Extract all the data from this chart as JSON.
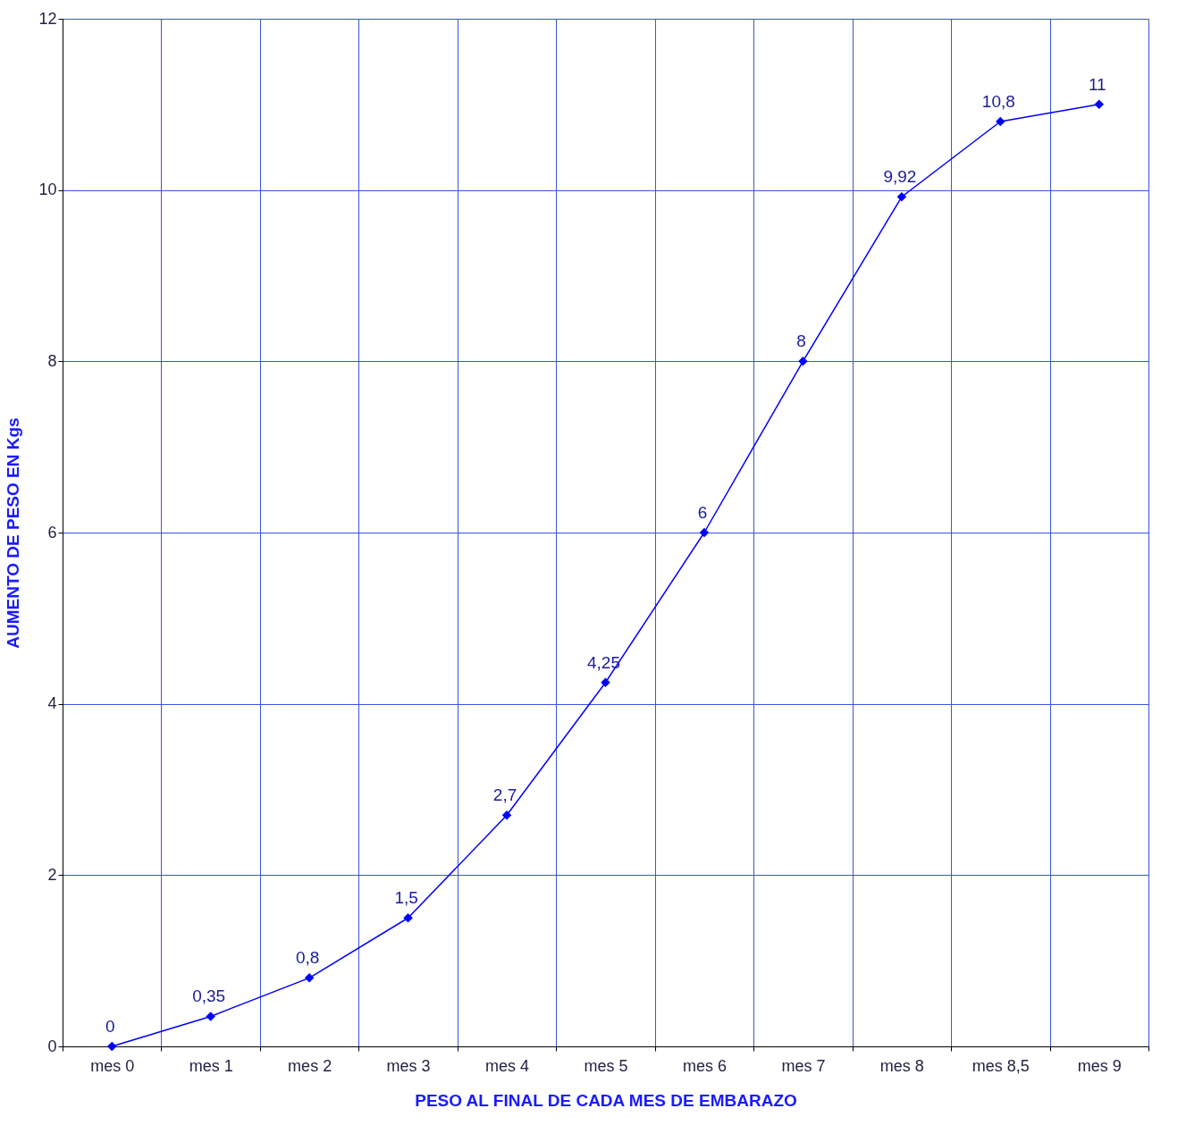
{
  "chart_data": {
    "type": "line",
    "xlabel": "PESO AL FINAL DE CADA MES DE EMBARAZO",
    "ylabel": "AUMENTO DE PESO EN Kgs",
    "categories": [
      "mes 0",
      "mes 1",
      "mes 2",
      "mes 3",
      "mes 4",
      "mes 5",
      "mes 6",
      "mes 7",
      "mes 8",
      "mes 8,5",
      "mes 9"
    ],
    "series": [
      {
        "color": "#0000ff",
        "values": [
          0,
          0.35,
          0.8,
          1.5,
          2.7,
          4.25,
          6,
          8,
          9.92,
          10.8,
          11
        ],
        "value_labels": [
          "0",
          "0,35",
          "0,8",
          "1,5",
          "2,7",
          "4,25",
          "6",
          "8",
          "9,92",
          "10,8",
          "11"
        ]
      }
    ],
    "ylim": [
      0,
      12
    ],
    "yticks": [
      0,
      2,
      4,
      6,
      8,
      10,
      12
    ],
    "grid": true,
    "marker": "diamond",
    "line_style": "solid"
  }
}
